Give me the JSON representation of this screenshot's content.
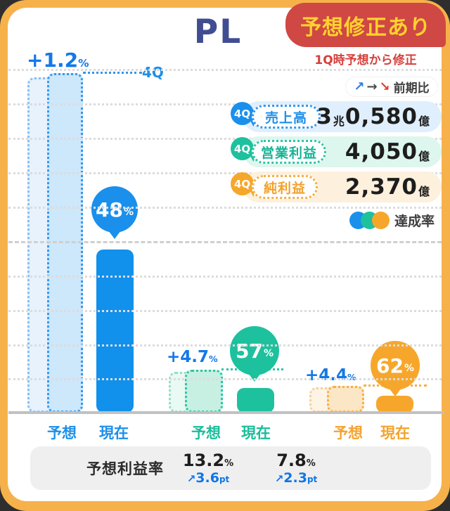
{
  "header": {
    "title": "PL",
    "badge": "予想修正あり",
    "badge_note": "1Q時予想から修正"
  },
  "legend": {
    "comparison": {
      "up_icon": "↗",
      "flat_icon": "→",
      "down_icon": "↘",
      "label": "前期比"
    },
    "rows": [
      {
        "period": "4Q",
        "label": "売上高",
        "v1": "3",
        "u1": "兆",
        "v2": "0,580",
        "u2": "億"
      },
      {
        "period": "4Q",
        "label": "営業利益",
        "v1": "",
        "u1": "",
        "v2": "4,050",
        "u2": "億"
      },
      {
        "period": "4Q",
        "label": "純利益",
        "v1": "",
        "u1": "",
        "v2": "2,370",
        "u2": "億"
      }
    ],
    "achievement_label": "達成率"
  },
  "chart_data": {
    "type": "bar",
    "title": "PL",
    "note": "1Q時予想から修正",
    "ylabel": "達成率",
    "grid": "dotted horizontal lines every 10%, dashed line at 50%, solid baseline at 0%",
    "groups": [
      {
        "name": "売上高",
        "period_label": "4Q",
        "target_text": "3兆0,580億",
        "target_oku": 30580,
        "achievement_pct": 48,
        "pct_unit": "%",
        "forecast_revision_pct": 1.2,
        "revision_display": "+1.2",
        "axis_forecast_label": "予想",
        "axis_current_label": "現在",
        "color": "#1190ec"
      },
      {
        "name": "営業利益",
        "period_label": "4Q",
        "target_text": "4,050億",
        "target_oku": 4050,
        "achievement_pct": 57,
        "pct_unit": "%",
        "forecast_revision_pct": 4.7,
        "revision_display": "+4.7",
        "axis_forecast_label": "予想",
        "axis_current_label": "現在",
        "color": "#1ec19d"
      },
      {
        "name": "純利益",
        "period_label": "4Q",
        "target_text": "2,370億",
        "target_oku": 2370,
        "achievement_pct": 62,
        "pct_unit": "%",
        "forecast_revision_pct": 4.4,
        "revision_display": "+4.4",
        "axis_forecast_label": "予想",
        "axis_current_label": "現在",
        "color": "#f6a72b"
      }
    ]
  },
  "table": {
    "label": "予想利益率",
    "cols": [
      {
        "value": "13.2",
        "unit": "%",
        "arrow": "↗",
        "delta": "3.6",
        "delta_unit": "pt"
      },
      {
        "value": "7.8",
        "unit": "%",
        "arrow": "↗",
        "delta": "2.3",
        "delta_unit": "pt"
      }
    ]
  },
  "colors": {
    "frame": "#f7b14a",
    "badge_bg": "#cf4844",
    "badge_text": "#ffd22e",
    "note_red": "#d6403b",
    "title_navy": "#414d92",
    "blue": "#1190ec",
    "teal": "#1ec19d",
    "orange": "#f6a72b",
    "delta_blue": "#1478e8"
  }
}
